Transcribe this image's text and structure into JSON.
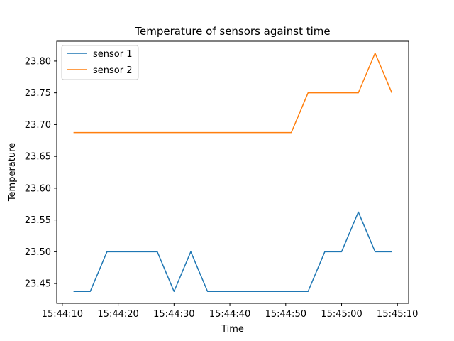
{
  "chart_data": {
    "type": "line",
    "title": "Temperature of sensors against time",
    "xlabel": "Time",
    "ylabel": "Temperature",
    "x": [
      "15:44:12",
      "15:44:15",
      "15:44:18",
      "15:44:21",
      "15:44:24",
      "15:44:27",
      "15:44:30",
      "15:44:33",
      "15:44:36",
      "15:44:39",
      "15:44:42",
      "15:44:45",
      "15:44:48",
      "15:44:51",
      "15:44:54",
      "15:44:57",
      "15:45:00",
      "15:45:03",
      "15:45:06",
      "15:45:09"
    ],
    "series": [
      {
        "name": "sensor 1",
        "color": "#1f77b4",
        "values": [
          23.4375,
          23.4375,
          23.5,
          23.5,
          23.5,
          23.5,
          23.4375,
          23.5,
          23.4375,
          23.4375,
          23.4375,
          23.4375,
          23.4375,
          23.4375,
          23.4375,
          23.5,
          23.5,
          23.5625,
          23.5,
          23.5
        ]
      },
      {
        "name": "sensor 2",
        "color": "#ff7f0e",
        "values": [
          23.6875,
          23.6875,
          23.6875,
          23.6875,
          23.6875,
          23.6875,
          23.6875,
          23.6875,
          23.6875,
          23.6875,
          23.6875,
          23.6875,
          23.6875,
          23.6875,
          23.75,
          23.75,
          23.75,
          23.75,
          23.8125,
          23.75
        ]
      }
    ],
    "xlim": [
      "15:44:09",
      "15:45:12"
    ],
    "ylim": [
      23.4188,
      23.8312
    ],
    "xticks": [
      "15:44:10",
      "15:44:20",
      "15:44:30",
      "15:44:40",
      "15:44:50",
      "15:45:00",
      "15:45:10"
    ],
    "yticks": [
      "23.45",
      "23.50",
      "23.55",
      "23.60",
      "23.65",
      "23.70",
      "23.75",
      "23.80"
    ],
    "grid": false,
    "legend_position": "upper-left"
  }
}
